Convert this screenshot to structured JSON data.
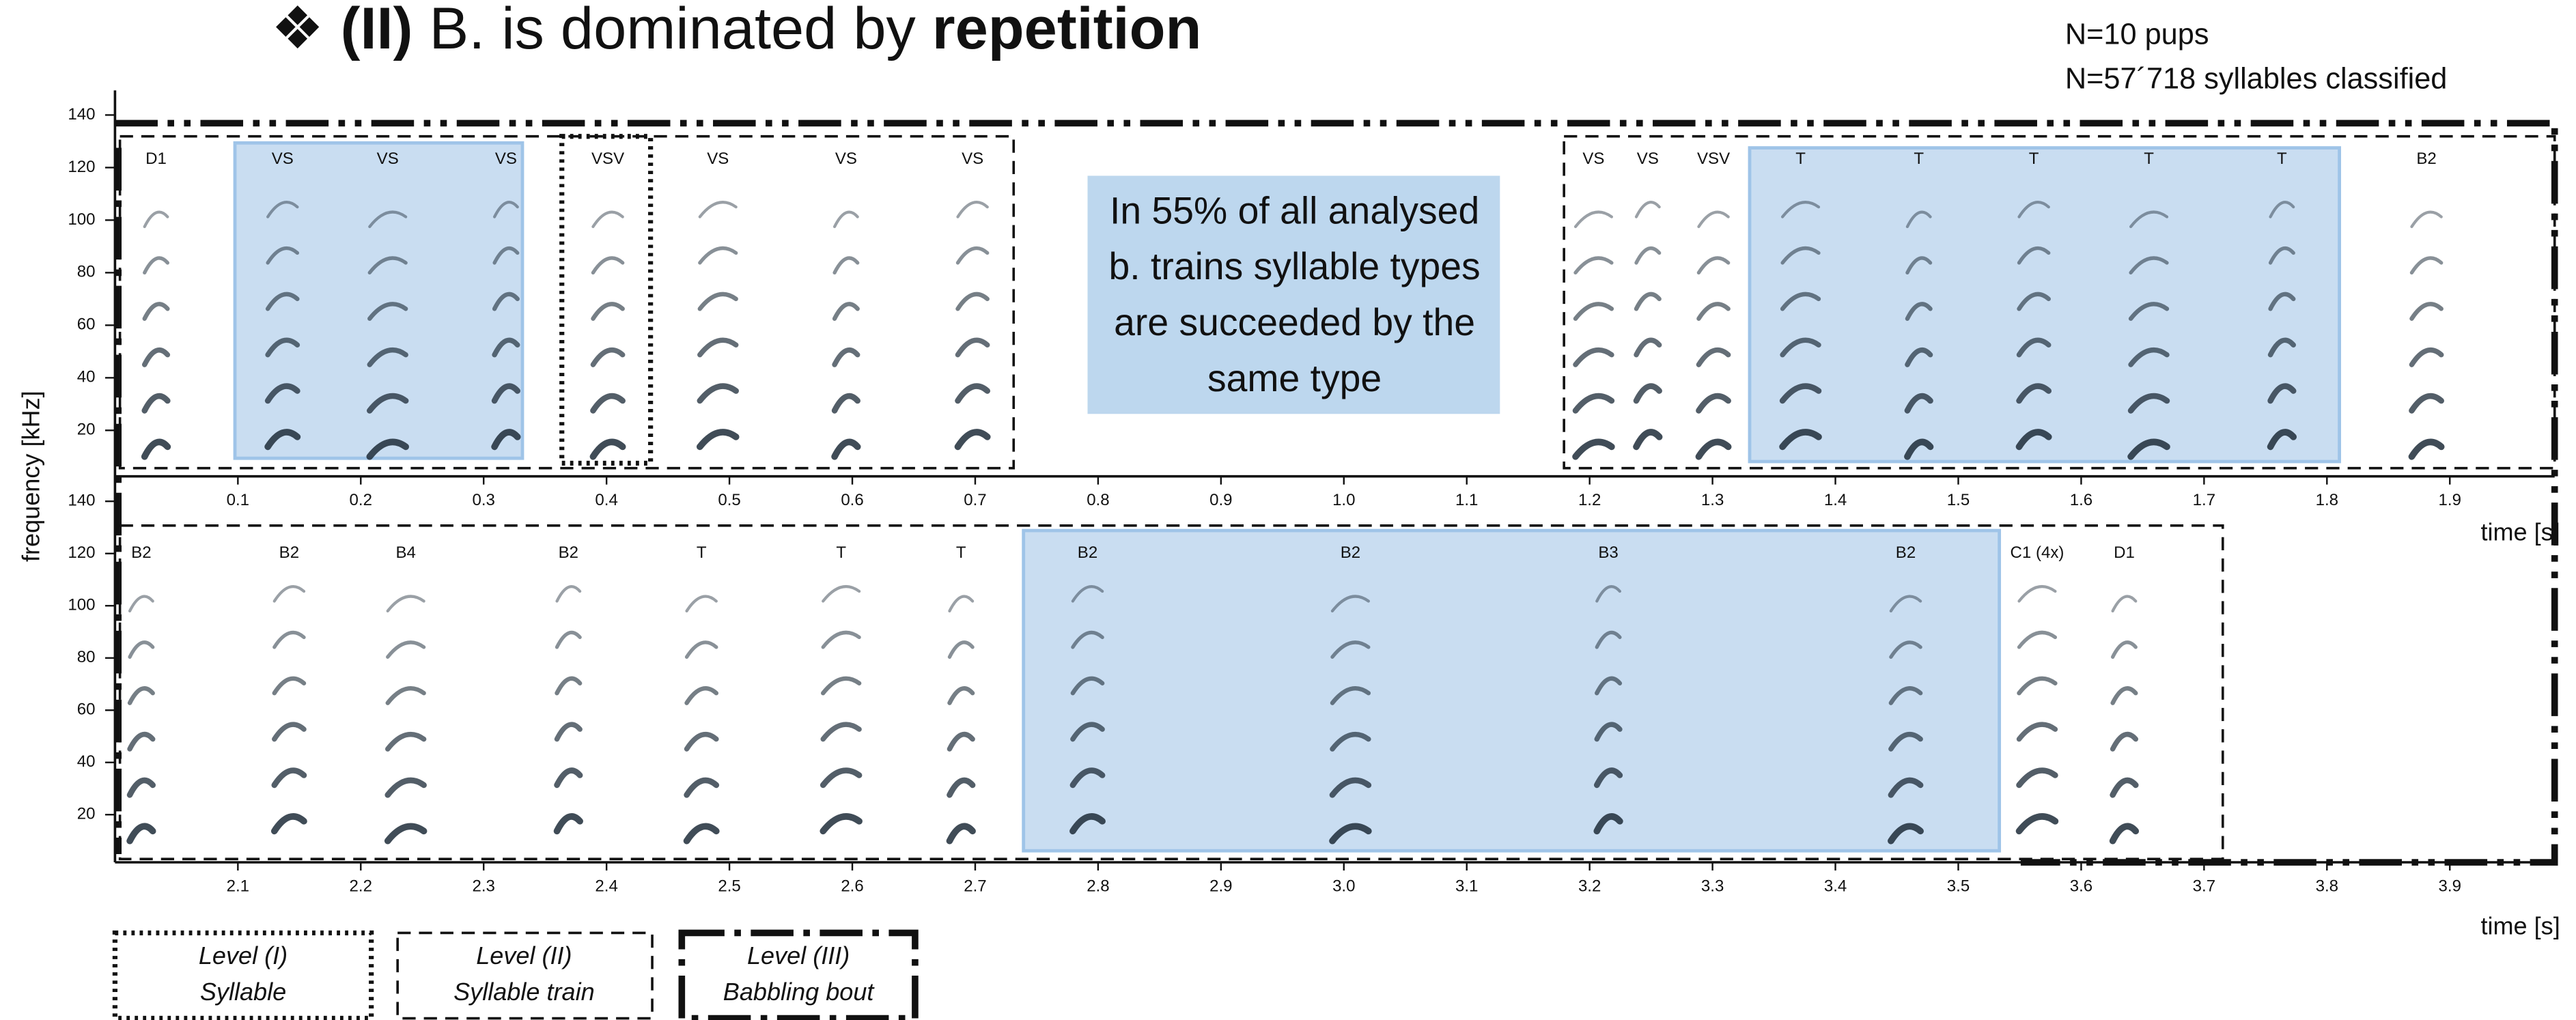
{
  "title": {
    "marker": "❖",
    "level": "(II)",
    "text": " B. is dominated by ",
    "emphasis": "repetition"
  },
  "notes": [
    "N=10 pups",
    "N=57´718 syllables classified"
  ],
  "y_label": "frequency [kHz]",
  "callout": [
    "In 55% of all analysed",
    "b. trains syllable types",
    "are succeeded by the",
    "same type"
  ],
  "top_panel": {
    "yticks": [
      20,
      40,
      60,
      80,
      100,
      120,
      140
    ],
    "xticks": [
      0.1,
      0.2,
      0.3,
      0.4,
      0.5,
      0.6,
      0.7,
      0.8,
      0.9,
      {
        "value": 1,
        "label": "1.0"
      },
      1.1,
      1.2,
      1.3,
      1.4,
      1.5,
      1.6,
      1.7,
      1.8,
      1.9
    ],
    "x_label": "time [s]",
    "syllables": [
      "D1",
      "VS",
      "VS",
      "VS",
      "VSV",
      "VS",
      "VS",
      "VS",
      "VS",
      "VS",
      "VSV",
      "T",
      "T",
      "T",
      "T",
      "T",
      "B2"
    ]
  },
  "bottom_panel": {
    "yticks": [
      20,
      40,
      60,
      80,
      100,
      120,
      140
    ],
    "xticks": [
      2.1,
      2.2,
      2.3,
      2.4,
      2.5,
      2.6,
      2.7,
      2.8,
      2.9,
      {
        "value": 3,
        "label": "3.0"
      },
      3.1,
      3.2,
      3.3,
      3.4,
      3.5,
      3.6,
      3.7,
      3.8,
      3.9
    ],
    "x_label": "time [s]",
    "syllables": [
      "B2",
      "B2",
      "B4",
      "B2",
      "T",
      "T",
      "T",
      "B2",
      "B2",
      "B3",
      "B2",
      "C1 (4x)",
      "D1"
    ]
  },
  "legend": [
    {
      "level": "Level (I)",
      "name": "Syllable"
    },
    {
      "level": "Level (II)",
      "name": "Syllable train"
    },
    {
      "level": "Level (III)",
      "name": "Babbling bout"
    }
  ]
}
